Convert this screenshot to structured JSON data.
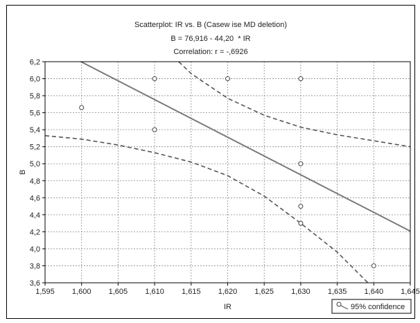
{
  "chart_data": {
    "type": "scatter",
    "title": "Scatterplot: IR vs. B (Casew ise MD deletion)",
    "subtitle": "B = 76,916 - 44,20  * IR",
    "subtitle2": "Correlation: r = -,6926",
    "xlabel": "IR",
    "ylabel": "B",
    "xlim": [
      1.595,
      1.645
    ],
    "ylim": [
      3.6,
      6.2
    ],
    "x_ticks": [
      "1,595",
      "1,600",
      "1,605",
      "1,610",
      "1,615",
      "1,620",
      "1,625",
      "1,630",
      "1,635",
      "1,640",
      "1,645"
    ],
    "y_ticks": [
      "3,6",
      "3,8",
      "4,0",
      "4,2",
      "4,4",
      "4,6",
      "4,8",
      "5,0",
      "5,2",
      "5,4",
      "5,6",
      "5,8",
      "6,0",
      "6,2"
    ],
    "points": [
      {
        "x": 1.6,
        "y": 5.66
      },
      {
        "x": 1.61,
        "y": 6.0
      },
      {
        "x": 1.61,
        "y": 5.4
      },
      {
        "x": 1.62,
        "y": 6.0
      },
      {
        "x": 1.63,
        "y": 6.0
      },
      {
        "x": 1.63,
        "y": 5.0
      },
      {
        "x": 1.63,
        "y": 4.5
      },
      {
        "x": 1.63,
        "y": 4.3
      },
      {
        "x": 1.64,
        "y": 3.8
      }
    ],
    "regression": {
      "intercept": 76.916,
      "slope": -44.2
    },
    "confidence_upper": [
      [
        1.6133,
        6.2
      ],
      [
        1.615,
        6.06
      ],
      [
        1.62,
        5.77
      ],
      [
        1.625,
        5.57
      ],
      [
        1.63,
        5.43
      ],
      [
        1.635,
        5.34
      ],
      [
        1.64,
        5.27
      ],
      [
        1.645,
        5.2
      ]
    ],
    "confidence_lower": [
      [
        1.595,
        5.33
      ],
      [
        1.6,
        5.29
      ],
      [
        1.605,
        5.22
      ],
      [
        1.61,
        5.13
      ],
      [
        1.615,
        5.02
      ],
      [
        1.62,
        4.86
      ],
      [
        1.625,
        4.62
      ],
      [
        1.63,
        4.3
      ],
      [
        1.635,
        3.96
      ],
      [
        1.6392,
        3.6
      ]
    ],
    "legend": {
      "label": "95% confidence",
      "position": "bottom-right"
    },
    "grid": true,
    "colors": {
      "regression": "#7a7a7a",
      "confidence": "#555555",
      "grid": "#888888",
      "points": "#444444"
    }
  }
}
